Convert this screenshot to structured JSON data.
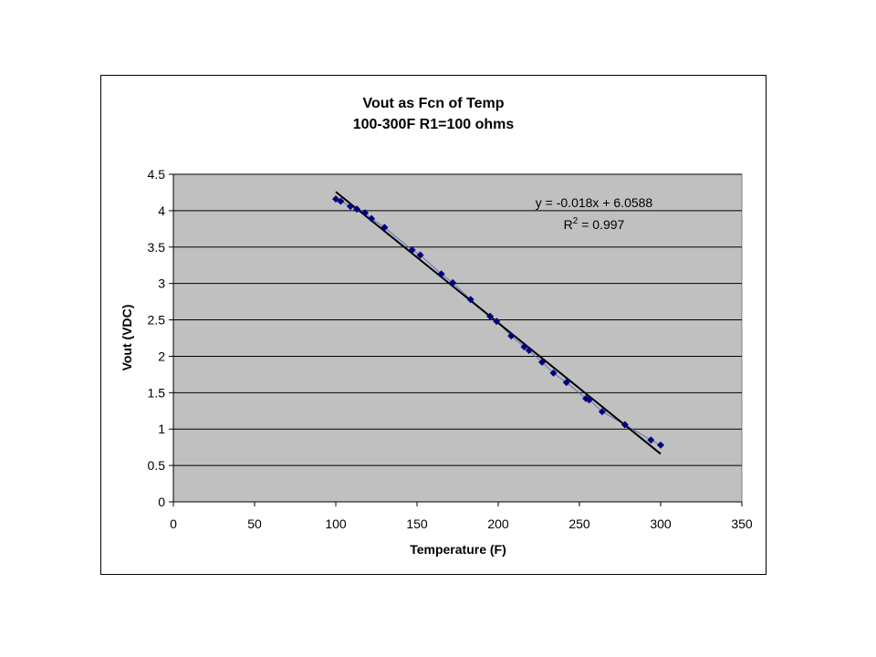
{
  "chart_data": {
    "type": "scatter",
    "title": "Vout as Fcn of Temp",
    "subtitle": "100-300F R1=100 ohms",
    "xlabel": "Temperature (F)",
    "ylabel": "Vout (VDC)",
    "xlim": [
      0,
      350
    ],
    "ylim": [
      0,
      4.5
    ],
    "xticks": [
      "0",
      "50",
      "100",
      "150",
      "200",
      "250",
      "300",
      "350"
    ],
    "yticks": [
      "0",
      "0.5",
      "1",
      "1.5",
      "2",
      "2.5",
      "3",
      "3.5",
      "4",
      "4.5"
    ],
    "grid": "horizontal",
    "series": [
      {
        "x": [
          100,
          103,
          109,
          113,
          118,
          122,
          130,
          147,
          152,
          165,
          172,
          183,
          195,
          199,
          208,
          216,
          219,
          227,
          234,
          242,
          254,
          256,
          264,
          278,
          294,
          300
        ],
        "y": [
          4.16,
          4.13,
          4.06,
          4.02,
          3.97,
          3.89,
          3.77,
          3.46,
          3.39,
          3.13,
          3.01,
          2.78,
          2.55,
          2.48,
          2.28,
          2.13,
          2.08,
          1.92,
          1.77,
          1.64,
          1.42,
          1.4,
          1.24,
          1.06,
          0.85,
          0.78
        ]
      }
    ],
    "trendline": {
      "type": "linear",
      "slope": -0.018,
      "intercept": 6.0588,
      "x_range": [
        100,
        300
      ],
      "equation": "y = -0.018x + 6.0588",
      "r2_prefix": "R",
      "r2_sup": "2",
      "r2_value": " = 0.997"
    },
    "colors": {
      "plot_area": "#c0c0c0",
      "marker": "#000080",
      "connector": "#5f6fbf",
      "trendline": "#000000",
      "gridline": "#000000"
    }
  }
}
